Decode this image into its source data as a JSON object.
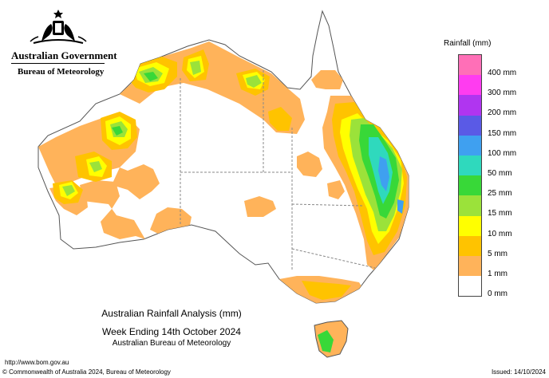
{
  "header": {
    "government": "Australian Government",
    "bureau": "Bureau of Meteorology"
  },
  "map": {
    "title": "Australian Rainfall Analysis (mm)",
    "week": "Week Ending 14th October 2024",
    "source": "Australian Bureau of Meteorology"
  },
  "legend": {
    "title": "Rainfall (mm)",
    "items": [
      {
        "label": "400 mm",
        "color": "#ff6fb7"
      },
      {
        "label": "300 mm",
        "color": "#ff3cf0"
      },
      {
        "label": "200 mm",
        "color": "#b035f0"
      },
      {
        "label": "150 mm",
        "color": "#5a5ae6"
      },
      {
        "label": "100 mm",
        "color": "#3fa0f0"
      },
      {
        "label": "50 mm",
        "color": "#2fd9bd"
      },
      {
        "label": "25 mm",
        "color": "#38d838"
      },
      {
        "label": "15 mm",
        "color": "#9be23a"
      },
      {
        "label": "10 mm",
        "color": "#ffff00"
      },
      {
        "label": "5 mm",
        "color": "#ffc300"
      },
      {
        "label": "1 mm",
        "color": "#ffb35a"
      },
      {
        "label": "0 mm",
        "color": "#ffffff"
      }
    ]
  },
  "footer": {
    "url": "http://www.bom.gov.au",
    "copyright": "© Commonwealth of Australia 2024, Bureau of Meteorology",
    "issued": "Issued: 14/10/2024"
  }
}
